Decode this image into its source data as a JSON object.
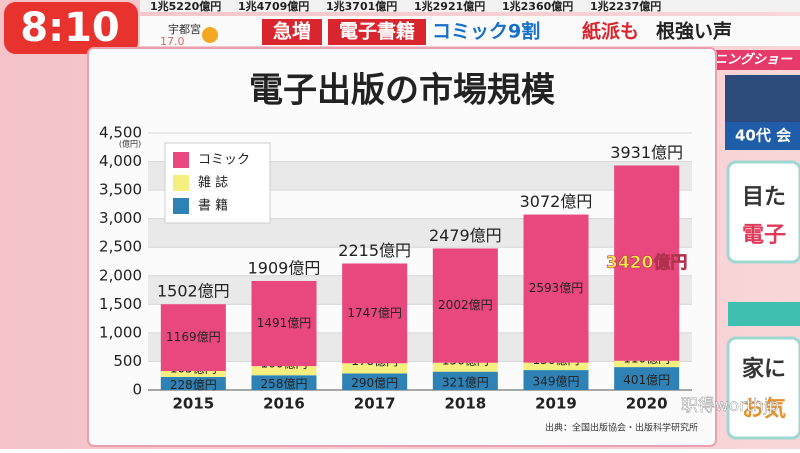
{
  "header": {
    "time": "8:10",
    "location": "宇都宮",
    "temperature": "17.0",
    "ticker": [
      "1兆5220億円",
      "1兆4709億円",
      "1兆3701億円",
      "1兆2921億円",
      "1兆2360億円",
      "1兆2237億円"
    ],
    "tags": [
      "急増",
      "電子書籍",
      "コミック9割",
      "紙派も",
      "根強い声"
    ],
    "program": "モーニングショー"
  },
  "side": {
    "label": "40代 会",
    "box1_line1": "目た",
    "box1_line2": "電子",
    "box2_line1": "家に",
    "box2_line2": "お気"
  },
  "watermark": "职得worthjp",
  "chart_data": {
    "type": "stacked_bar",
    "title": "電子出版の市場規模",
    "y_unit": "(億円)",
    "source": "出典：全国出版協会・出版科学研究所",
    "categories": [
      "2015",
      "2016",
      "2017",
      "2018",
      "2019",
      "2020"
    ],
    "series": [
      {
        "name": "書 籍",
        "color": "#2f82b6",
        "values": [
          228,
          258,
          290,
          321,
          349,
          401
        ],
        "value_labels": [
          "228億円",
          "258億円",
          "290億円",
          "321億円",
          "349億円",
          "401億円"
        ]
      },
      {
        "name": "雑 誌",
        "color": "#f4ef7e",
        "values": [
          105,
          160,
          178,
          156,
          130,
          110
        ],
        "value_labels": [
          "105億円",
          "160億円",
          "178億円",
          "156億円",
          "130億円",
          "110億円"
        ]
      },
      {
        "name": "コミック",
        "color": "#e9487f",
        "values": [
          1169,
          1491,
          1747,
          2002,
          2593,
          3420
        ],
        "value_labels": [
          "1169億円",
          "1491億円",
          "1747億円",
          "2002億円",
          "2593億円",
          "3420億円"
        ]
      }
    ],
    "totals": [
      1502,
      1909,
      2215,
      2479,
      3072,
      3931
    ],
    "total_labels": [
      "1502億円",
      "1909億円",
      "2215億円",
      "2479億円",
      "3072億円",
      "3931億円"
    ],
    "ylim": [
      0,
      4500
    ],
    "yticks": [
      0,
      500,
      {
        "value": 1000,
        "label": "1,000"
      },
      {
        "value": 1500,
        "label": "1,500"
      },
      {
        "value": 2000,
        "label": "2,000"
      },
      {
        "value": 2500,
        "label": "2,500"
      },
      {
        "value": 3000,
        "label": "3,000"
      },
      {
        "value": 3500,
        "label": "3,500"
      },
      {
        "value": 4000,
        "label": "4,000"
      },
      {
        "value": 4500,
        "label": "4,500"
      }
    ],
    "grid": true
  }
}
